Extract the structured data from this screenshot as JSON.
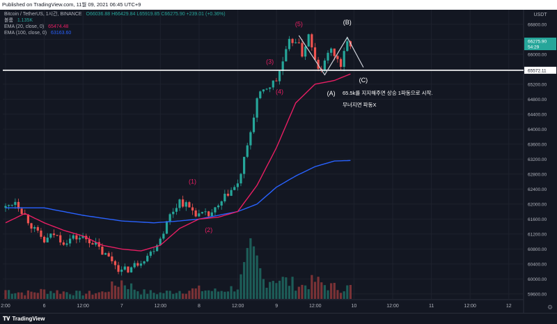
{
  "header": {
    "published": "Published on TradingView.com, 11월 09, 2021 06:45 UTC+9"
  },
  "legend": {
    "symbol": "Bitcoin / TetherUS, 1시간, BINANCE",
    "ohlc": "O66036.88 H66429.84 L65919.85 C66275.90 +239.01 (+0.36%)",
    "volume_label": "볼륨",
    "volume_value": "1.135K",
    "ema20_label": "EMA (20, close, 0)",
    "ema20_value": "65474.48",
    "ema100_label": "EMA (100, close, 0)",
    "ema100_value": "63163.60"
  },
  "footer": {
    "brand": "TradingView"
  },
  "colors": {
    "background": "#131722",
    "grid": "#1e222d",
    "up": "#26a69a",
    "down": "#ef5350",
    "ema20": "#e91e63",
    "ema100": "#2962ff",
    "wave_label": "#e91e63",
    "level_line": "#ffffff",
    "price_badge": "#26a69a"
  },
  "icons": {
    "settings": "gear-icon"
  },
  "chart_data": {
    "type": "candlestick",
    "currency": "USDT",
    "x_ticks": [
      "2:00",
      "6",
      "12:00",
      "7",
      "12:00",
      "8",
      "12:00",
      "9",
      "12:00",
      "10",
      "12:00",
      "11",
      "12:00",
      "12"
    ],
    "y_ticks": [
      "59600.00",
      "60000.00",
      "60400.00",
      "60800.00",
      "61200.00",
      "61600.00",
      "62000.00",
      "62400.00",
      "62800.00",
      "63200.00",
      "63600.00",
      "64000.00",
      "64400.00",
      "64800.00",
      "65200.00",
      "65600.00",
      "66000.00",
      "66400.00",
      "66800.00"
    ],
    "ylim": [
      59450,
      67150
    ],
    "grid": true,
    "current_price": 66275.9,
    "current_price_label": "66275.90",
    "countdown": "54:29",
    "level_price": 65572.11,
    "level_label": "65572.11",
    "candles_summary": "Hourly BTCUSDT candles from Nov 5 22:00 to Nov 9 06:00; consolidation 61200-62200, dip to ~60100 on Nov 7, rally to ~66600 on Nov 8-9",
    "price_path": [
      [
        0,
        61900
      ],
      [
        3,
        62100
      ],
      [
        6,
        61700
      ],
      [
        9,
        61300
      ],
      [
        12,
        61000
      ],
      [
        15,
        61200
      ],
      [
        18,
        61000
      ],
      [
        21,
        61100
      ],
      [
        24,
        61100
      ],
      [
        27,
        61000
      ],
      [
        30,
        60700
      ],
      [
        33,
        60500
      ],
      [
        36,
        60200
      ],
      [
        39,
        60300
      ],
      [
        42,
        60500
      ],
      [
        45,
        60700
      ],
      [
        48,
        61100
      ],
      [
        51,
        61700
      ],
      [
        54,
        62100
      ],
      [
        57,
        61900
      ],
      [
        60,
        61700
      ],
      [
        63,
        61700
      ],
      [
        66,
        61900
      ],
      [
        69,
        62300
      ],
      [
        72,
        62500
      ],
      [
        75,
        63500
      ],
      [
        78,
        64800
      ],
      [
        81,
        65100
      ],
      [
        84,
        65300
      ],
      [
        86,
        65800
      ],
      [
        88,
        66300
      ],
      [
        90,
        66400
      ],
      [
        92,
        66000
      ],
      [
        94,
        66500
      ],
      [
        96,
        65800
      ],
      [
        98,
        65500
      ],
      [
        100,
        66100
      ],
      [
        102,
        66000
      ],
      [
        104,
        65700
      ],
      [
        106,
        66300
      ],
      [
        107,
        66280
      ]
    ],
    "ema20_path": [
      [
        0,
        61500
      ],
      [
        6,
        61750
      ],
      [
        12,
        61500
      ],
      [
        18,
        61300
      ],
      [
        24,
        61150
      ],
      [
        30,
        60900
      ],
      [
        36,
        60800
      ],
      [
        42,
        60750
      ],
      [
        48,
        60900
      ],
      [
        54,
        61350
      ],
      [
        60,
        61600
      ],
      [
        66,
        61650
      ],
      [
        72,
        61800
      ],
      [
        78,
        62500
      ],
      [
        84,
        63500
      ],
      [
        90,
        64700
      ],
      [
        96,
        65200
      ],
      [
        102,
        65300
      ],
      [
        107,
        65474
      ]
    ],
    "ema100_path": [
      [
        0,
        61900
      ],
      [
        12,
        61900
      ],
      [
        24,
        61700
      ],
      [
        36,
        61550
      ],
      [
        46,
        61500
      ],
      [
        54,
        61550
      ],
      [
        60,
        61600
      ],
      [
        66,
        61700
      ],
      [
        72,
        61800
      ],
      [
        78,
        62000
      ],
      [
        84,
        62450
      ],
      [
        90,
        62750
      ],
      [
        96,
        63000
      ],
      [
        102,
        63150
      ],
      [
        107,
        63164
      ]
    ],
    "volume_path": [
      [
        0,
        15
      ],
      [
        6,
        10
      ],
      [
        12,
        14
      ],
      [
        18,
        12
      ],
      [
        24,
        9
      ],
      [
        30,
        11
      ],
      [
        36,
        30
      ],
      [
        42,
        12
      ],
      [
        48,
        10
      ],
      [
        54,
        14
      ],
      [
        60,
        16
      ],
      [
        66,
        13
      ],
      [
        72,
        20
      ],
      [
        76,
        74
      ],
      [
        78,
        60
      ],
      [
        80,
        32
      ],
      [
        84,
        36
      ],
      [
        88,
        28
      ],
      [
        92,
        22
      ],
      [
        96,
        30
      ],
      [
        100,
        22
      ],
      [
        104,
        18
      ],
      [
        107,
        20
      ]
    ],
    "wave_labels": [
      {
        "text": "(1)",
        "x": 58,
        "y": 62550
      },
      {
        "text": "(2)",
        "x": 63,
        "y": 61250
      },
      {
        "text": "(3)",
        "x": 82,
        "y": 65750
      },
      {
        "text": "(4)",
        "x": 85,
        "y": 64950
      },
      {
        "text": "(5)",
        "x": 91,
        "y": 66750
      },
      {
        "text": "(A)",
        "x": 101,
        "y": 64900
      },
      {
        "text": "(B)",
        "x": 106,
        "y": 66800
      },
      {
        "text": "(C)",
        "x": 111,
        "y": 65250
      }
    ],
    "annotations": [
      "65.5k를 지지해주면 상승 1파동으로 시작.",
      "무너지면 파동X"
    ]
  }
}
